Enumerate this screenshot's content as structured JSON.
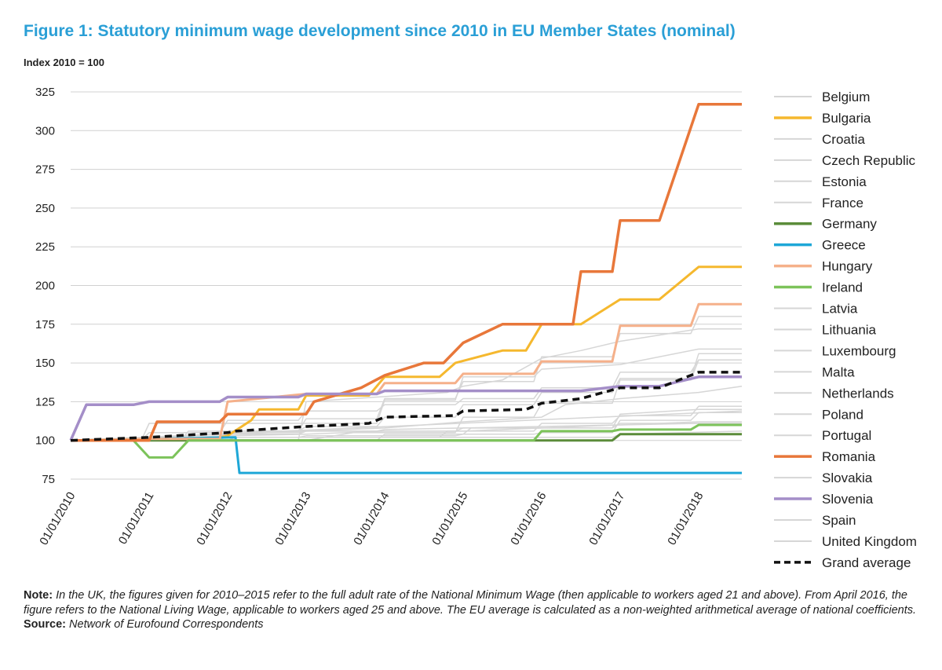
{
  "title": "Figure 1: Statutory minimum wage development since 2010 in EU Member States (nominal)",
  "subtitle": "Index 2010 = 100",
  "note_label": "Note:",
  "note_text": "In the UK, the figures given for 2010–2015 refer to the full adult rate of the National Minimum Wage (then applicable to workers aged 21 and above). From April 2016, the figure refers to the National Living Wage, applicable to workers aged 25 and above. The EU average is calculated as a non-weighted arithmetical average of national coefficients.",
  "source_label": "Source:",
  "source_text": "Network of Eurofound Correspondents",
  "chart_data": {
    "type": "line",
    "title": "Figure 1: Statutory minimum wage development since 2010 in EU Member States (nominal)",
    "ylabel": "Index 2010 = 100",
    "ylim": [
      75,
      325
    ],
    "yticks": [
      75,
      100,
      125,
      150,
      175,
      200,
      225,
      250,
      275,
      300,
      325
    ],
    "xlim": [
      2010.0,
      2018.55
    ],
    "xticks": [
      2010,
      2011,
      2012,
      2013,
      2014,
      2015,
      2016,
      2017,
      2018
    ],
    "xtick_labels": [
      "01/01/2010",
      "01/01/2011",
      "01/01/2012",
      "01/01/2013",
      "01/01/2014",
      "01/01/2015",
      "01/01/2016",
      "01/01/2017",
      "01/01/2018"
    ],
    "grid": "horizontal",
    "legend_position": "right",
    "series": [
      {
        "name": "Belgium",
        "color": "#d6d6d6",
        "style": "solid",
        "width": 1.5,
        "x": [
          2010,
          2012.0,
          2012.1,
          2013.0,
          2015.5,
          2016.9,
          2017.0,
          2018.55
        ],
        "y": [
          100,
          100,
          102,
          102,
          102,
          102,
          104,
          106
        ]
      },
      {
        "name": "Bulgaria",
        "color": "#f5b82e",
        "style": "solid",
        "width": 3,
        "x": [
          2010,
          2011.0,
          2011.3,
          2011.5,
          2011.8,
          2012.0,
          2012.3,
          2012.4,
          2012.9,
          2013.0,
          2013.8,
          2014.0,
          2014.7,
          2014.9,
          2015.5,
          2015.8,
          2016.0,
          2016.5,
          2017.0,
          2017.5,
          2018.0,
          2018.55
        ],
        "y": [
          100,
          101,
          101,
          101,
          101,
          103,
          113,
          120,
          120,
          129,
          129,
          141,
          141,
          150,
          158,
          158,
          175,
          175,
          191,
          191,
          212,
          212
        ]
      },
      {
        "name": "Croatia",
        "color": "#d6d6d6",
        "style": "solid",
        "width": 1.5,
        "x": [
          2010,
          2013.9,
          2014.0,
          2015.0,
          2015.1,
          2016.9,
          2017.0,
          2018.0,
          2018.55
        ],
        "y": [
          100,
          100,
          104,
          104,
          108,
          108,
          117,
          120,
          120
        ]
      },
      {
        "name": "Czech Republic",
        "color": "#d6d6d6",
        "style": "solid",
        "width": 1.5,
        "x": [
          2010,
          2012.9,
          2013.0,
          2013.6,
          2013.8,
          2014.9,
          2015.0,
          2015.9,
          2016.0,
          2016.9,
          2017.0,
          2017.9,
          2018.0,
          2018.55
        ],
        "y": [
          100,
          100,
          100,
          105,
          105,
          105,
          115,
          115,
          124,
          124,
          139,
          139,
          152,
          152
        ]
      },
      {
        "name": "Estonia",
        "color": "#d6d6d6",
        "style": "solid",
        "width": 1.5,
        "x": [
          2010,
          2011.4,
          2011.5,
          2012.9,
          2013.0,
          2013.9,
          2014.0,
          2014.9,
          2015.0,
          2015.9,
          2016.0,
          2016.9,
          2017.0,
          2017.9,
          2018.0,
          2018.55
        ],
        "y": [
          100,
          100,
          106,
          106,
          114,
          114,
          127,
          127,
          138,
          138,
          154,
          154,
          169,
          169,
          180,
          180
        ]
      },
      {
        "name": "France",
        "color": "#d6d6d6",
        "style": "solid",
        "width": 1.5,
        "x": [
          2010,
          2010.9,
          2011.0,
          2011.9,
          2012.0,
          2012.5,
          2012.9,
          2013.0,
          2013.9,
          2014.0,
          2015.0,
          2016.0,
          2017.0,
          2018.0,
          2018.55
        ],
        "y": [
          100,
          100,
          102,
          102,
          104,
          105,
          105,
          106,
          106,
          107,
          108,
          109,
          110,
          111,
          111
        ]
      },
      {
        "name": "Germany",
        "color": "#5b8c3a",
        "style": "solid",
        "width": 3,
        "x": [
          2010,
          2015.0,
          2016.9,
          2017.0,
          2018.55
        ],
        "y": [
          100,
          100,
          100,
          104,
          104
        ]
      },
      {
        "name": "Greece",
        "color": "#1ea7d7",
        "style": "solid",
        "width": 3,
        "x": [
          2010,
          2012.1,
          2012.15,
          2018.55
        ],
        "y": [
          100,
          102,
          79,
          79
        ]
      },
      {
        "name": "Hungary",
        "color": "#f5b08a",
        "style": "solid",
        "width": 3,
        "x": [
          2010,
          2011.0,
          2011.9,
          2012.0,
          2013.0,
          2013.9,
          2014.0,
          2014.9,
          2015.0,
          2015.9,
          2016.0,
          2016.9,
          2017.0,
          2017.9,
          2018.0,
          2018.55
        ],
        "y": [
          100,
          101,
          101,
          125,
          130,
          130,
          137,
          137,
          143,
          143,
          151,
          151,
          174,
          174,
          188,
          188
        ]
      },
      {
        "name": "Ireland",
        "color": "#7cc35a",
        "style": "solid",
        "width": 3,
        "x": [
          2010,
          2010.8,
          2011.0,
          2011.3,
          2011.5,
          2015.9,
          2016.0,
          2016.9,
          2017.0,
          2017.9,
          2018.0,
          2018.55
        ],
        "y": [
          100,
          100,
          89,
          89,
          100,
          100,
          106,
          106,
          107,
          107,
          110,
          110
        ]
      },
      {
        "name": "Latvia",
        "color": "#d6d6d6",
        "style": "solid",
        "width": 1.5,
        "x": [
          2010,
          2010.9,
          2011.0,
          2013.9,
          2014.0,
          2014.9,
          2015.0,
          2015.9,
          2016.0,
          2017.0,
          2018.0,
          2018.55
        ],
        "y": [
          100,
          100,
          111,
          111,
          126,
          126,
          141,
          141,
          146,
          149,
          159,
          159
        ]
      },
      {
        "name": "Lithuania",
        "color": "#d6d6d6",
        "style": "solid",
        "width": 1.5,
        "x": [
          2010,
          2012.5,
          2012.9,
          2013.0,
          2014.8,
          2015.0,
          2015.5,
          2016.0,
          2016.5,
          2017.0,
          2018.0,
          2018.55
        ],
        "y": [
          100,
          100,
          100,
          125,
          131,
          135,
          139,
          153,
          158,
          164,
          172,
          172
        ]
      },
      {
        "name": "Luxembourg",
        "color": "#d6d6d6",
        "style": "solid",
        "width": 1.5,
        "x": [
          2010,
          2010.9,
          2011.0,
          2011.9,
          2012.0,
          2012.9,
          2013.0,
          2014.9,
          2015.0,
          2016.9,
          2017.0,
          2018.55
        ],
        "y": [
          100,
          100,
          102,
          102,
          104,
          104,
          106,
          106,
          108,
          108,
          111,
          111
        ]
      },
      {
        "name": "Malta",
        "color": "#d6d6d6",
        "style": "solid",
        "width": 1.5,
        "x": [
          2010,
          2018.55
        ],
        "y": [
          100,
          119
        ]
      },
      {
        "name": "Netherlands",
        "color": "#d6d6d6",
        "style": "solid",
        "width": 1.5,
        "x": [
          2010,
          2011.0,
          2012.0,
          2013.0,
          2014.0,
          2015.0,
          2016.0,
          2017.0,
          2018.0,
          2018.55
        ],
        "y": [
          100,
          101,
          103,
          104,
          106,
          106,
          108,
          110,
          112,
          112
        ]
      },
      {
        "name": "Poland",
        "color": "#d6d6d6",
        "style": "solid",
        "width": 1.5,
        "x": [
          2010,
          2010.9,
          2011.0,
          2011.9,
          2012.0,
          2012.9,
          2013.0,
          2013.9,
          2014.0,
          2014.9,
          2015.0,
          2015.9,
          2016.0,
          2016.9,
          2017.0,
          2017.9,
          2018.0,
          2018.55
        ],
        "y": [
          100,
          100,
          105,
          105,
          113,
          113,
          119,
          119,
          123,
          123,
          127,
          127,
          134,
          134,
          144,
          144,
          152,
          152
        ]
      },
      {
        "name": "Portugal",
        "color": "#d6d6d6",
        "style": "solid",
        "width": 1.5,
        "x": [
          2010,
          2010.9,
          2011.0,
          2014.7,
          2014.8,
          2014.9,
          2015.0,
          2015.9,
          2016.0,
          2016.9,
          2017.0,
          2017.9,
          2018.0,
          2018.55
        ],
        "y": [
          100,
          100,
          102,
          102,
          106,
          106,
          106,
          106,
          111,
          111,
          116,
          116,
          122,
          122
        ]
      },
      {
        "name": "Romania",
        "color": "#e8773a",
        "style": "solid",
        "width": 3.5,
        "x": [
          2010,
          2011.0,
          2011.1,
          2011.9,
          2012.0,
          2012.9,
          2013.0,
          2013.1,
          2013.5,
          2013.7,
          2014.0,
          2014.5,
          2014.75,
          2015.0,
          2015.5,
          2016.0,
          2016.4,
          2016.5,
          2016.9,
          2017.0,
          2017.5,
          2018.0,
          2018.55
        ],
        "y": [
          100,
          100,
          112,
          112,
          117,
          117,
          117,
          125,
          131,
          134,
          142,
          150,
          150,
          163,
          175,
          175,
          175,
          209,
          209,
          242,
          242,
          317,
          317
        ]
      },
      {
        "name": "Slovakia",
        "color": "#d6d6d6",
        "style": "solid",
        "width": 1.5,
        "x": [
          2010,
          2010.9,
          2011.0,
          2011.9,
          2012.0,
          2012.9,
          2013.0,
          2013.9,
          2014.0,
          2014.9,
          2015.0,
          2015.9,
          2016.0,
          2016.9,
          2017.0,
          2017.9,
          2018.0,
          2018.55
        ],
        "y": [
          100,
          100,
          102,
          102,
          106,
          106,
          109,
          109,
          115,
          115,
          123,
          123,
          131,
          131,
          140,
          140,
          156,
          156
        ]
      },
      {
        "name": "Slovenia",
        "color": "#a48ec8",
        "style": "solid",
        "width": 3.5,
        "x": [
          2010,
          2010.2,
          2010.8,
          2011.0,
          2011.9,
          2012.0,
          2012.9,
          2013.0,
          2013.9,
          2014.0,
          2014.9,
          2015.0,
          2016.0,
          2016.5,
          2017.0,
          2017.5,
          2018.0,
          2018.55
        ],
        "y": [
          100,
          123,
          123,
          125,
          125,
          128,
          128,
          130,
          130,
          132,
          132,
          132,
          132,
          132,
          135,
          135,
          141,
          141
        ]
      },
      {
        "name": "Spain",
        "color": "#d6d6d6",
        "style": "solid",
        "width": 1.5,
        "x": [
          2010,
          2010.9,
          2011.0,
          2011.9,
          2012.0,
          2012.9,
          2013.0,
          2014.9,
          2015.0,
          2015.9,
          2016.0,
          2016.9,
          2017.0,
          2017.9,
          2018.0,
          2018.55
        ],
        "y": [
          100,
          100,
          101,
          101,
          102,
          102,
          103,
          103,
          104,
          104,
          105,
          105,
          113,
          113,
          118,
          118
        ]
      },
      {
        "name": "United Kingdom",
        "color": "#d6d6d6",
        "style": "solid",
        "width": 1.5,
        "x": [
          2010,
          2011.0,
          2012.0,
          2013.0,
          2014.0,
          2015.0,
          2016.0,
          2016.3,
          2017.0,
          2018.0,
          2018.55
        ],
        "y": [
          100,
          102,
          104,
          106,
          108,
          112,
          115,
          123,
          127,
          131,
          135
        ]
      },
      {
        "name": "Grand average",
        "color": "#111111",
        "style": "dashed",
        "width": 3.5,
        "x": [
          2010,
          2011.0,
          2012.0,
          2012.1,
          2013.0,
          2013.8,
          2014.0,
          2014.9,
          2015.0,
          2015.8,
          2016.0,
          2016.5,
          2017.0,
          2017.5,
          2018.0,
          2018.55
        ],
        "y": [
          100,
          102,
          105,
          106,
          109,
          111,
          115,
          116,
          119,
          120,
          124,
          127,
          134,
          134,
          144,
          144
        ]
      }
    ]
  }
}
